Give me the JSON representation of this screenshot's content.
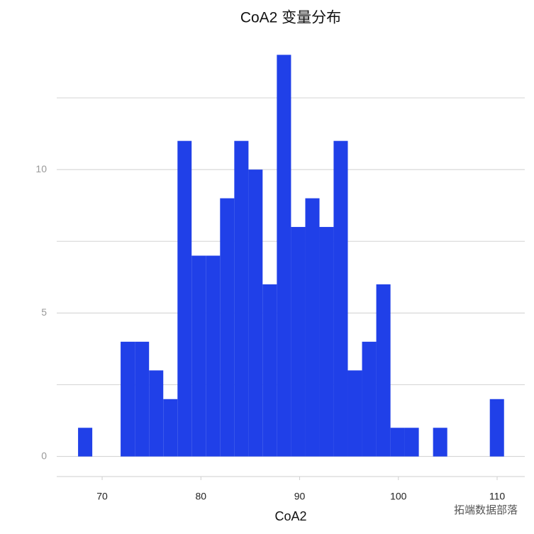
{
  "chart_data": {
    "type": "histogram",
    "title": "CoA2 变量分布",
    "xlabel": "CoA2",
    "bins": [
      67.56,
      69.0,
      70.44,
      71.87,
      73.31,
      74.75,
      76.19,
      77.63,
      79.06,
      80.5,
      81.94,
      83.38,
      84.82,
      86.25,
      87.69,
      89.13,
      90.57,
      92.01,
      93.44,
      94.88,
      96.32,
      97.76,
      99.2,
      100.63,
      102.07,
      103.51,
      104.95,
      106.39,
      107.82,
      109.26,
      110.7
    ],
    "values": [
      1,
      0,
      0,
      4,
      4,
      3,
      2,
      11,
      7,
      7,
      9,
      11,
      10,
      6,
      14,
      8,
      9,
      8,
      11,
      3,
      4,
      6,
      1,
      1,
      0,
      1,
      0,
      0,
      0,
      2
    ],
    "color": "#2040e8",
    "xlim": [
      65.4,
      112.8
    ],
    "xticks": [
      70,
      80,
      90,
      100,
      110
    ],
    "ylim": [
      -0.7,
      14.7
    ],
    "yticks": [
      0,
      5,
      10
    ],
    "minor_yticks": [
      2.5,
      7.5,
      12.5
    ],
    "grid": true,
    "annotation": "拓端数据部落"
  }
}
